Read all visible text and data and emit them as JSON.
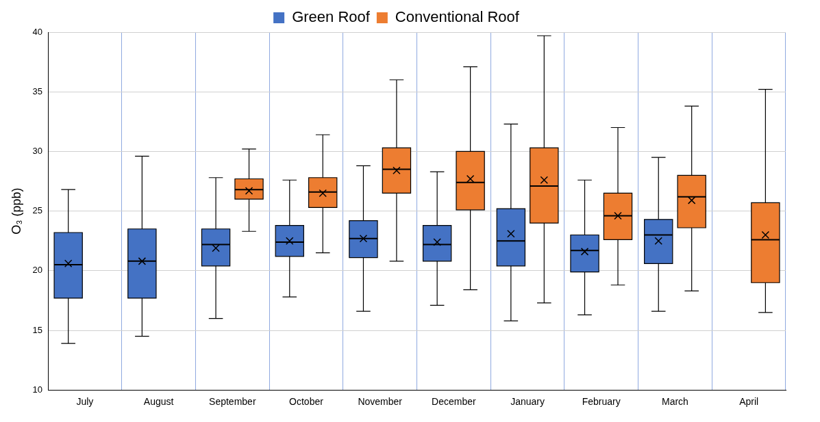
{
  "chart_data": {
    "type": "box",
    "ylabel": "O₃ (ppb)",
    "categories": [
      "July",
      "August",
      "September",
      "October",
      "November",
      "December",
      "January",
      "February",
      "March",
      "April"
    ],
    "ylim": [
      10,
      40
    ],
    "yticks": [
      10,
      15,
      20,
      25,
      30,
      35,
      40
    ],
    "grid": true,
    "legend": "top",
    "series": [
      {
        "name": "Green Roof",
        "color": "#4472c4",
        "boxes": [
          {
            "low": 13.9,
            "q1": 17.7,
            "median": 20.5,
            "q3": 23.2,
            "high": 26.8,
            "mean": 20.6
          },
          {
            "low": 14.5,
            "q1": 17.7,
            "median": 20.8,
            "q3": 23.5,
            "high": 29.6,
            "mean": 20.8
          },
          {
            "low": 16.0,
            "q1": 20.4,
            "median": 22.2,
            "q3": 23.5,
            "high": 27.8,
            "mean": 21.9
          },
          {
            "low": 17.8,
            "q1": 21.2,
            "median": 22.4,
            "q3": 23.8,
            "high": 27.6,
            "mean": 22.5
          },
          {
            "low": 16.6,
            "q1": 21.1,
            "median": 22.7,
            "q3": 24.2,
            "high": 28.8,
            "mean": 22.7
          },
          {
            "low": 17.1,
            "q1": 20.8,
            "median": 22.2,
            "q3": 23.8,
            "high": 28.3,
            "mean": 22.4
          },
          {
            "low": 15.8,
            "q1": 20.4,
            "median": 22.5,
            "q3": 25.2,
            "high": 32.3,
            "mean": 23.1
          },
          {
            "low": 16.3,
            "q1": 19.9,
            "median": 21.7,
            "q3": 23.0,
            "high": 27.6,
            "mean": 21.6
          },
          {
            "low": 16.6,
            "q1": 20.6,
            "median": 23.0,
            "q3": 24.3,
            "high": 29.5,
            "mean": 22.5
          },
          null
        ]
      },
      {
        "name": "Conventional Roof",
        "color": "#ed7d31",
        "boxes": [
          null,
          null,
          {
            "low": 23.3,
            "q1": 26.0,
            "median": 26.8,
            "q3": 27.7,
            "high": 30.2,
            "mean": 26.7
          },
          {
            "low": 21.5,
            "q1": 25.3,
            "median": 26.6,
            "q3": 27.8,
            "high": 31.4,
            "mean": 26.5
          },
          {
            "low": 20.8,
            "q1": 26.5,
            "median": 28.5,
            "q3": 30.3,
            "high": 36.0,
            "mean": 28.4
          },
          {
            "low": 18.4,
            "q1": 25.1,
            "median": 27.4,
            "q3": 30.0,
            "high": 37.1,
            "mean": 27.7
          },
          {
            "low": 17.3,
            "q1": 24.0,
            "median": 27.1,
            "q3": 30.3,
            "high": 39.7,
            "mean": 27.6
          },
          {
            "low": 18.8,
            "q1": 22.6,
            "median": 24.6,
            "q3": 26.5,
            "high": 32.0,
            "mean": 24.6
          },
          {
            "low": 18.3,
            "q1": 23.6,
            "median": 26.2,
            "q3": 28.0,
            "high": 33.8,
            "mean": 25.9
          },
          {
            "low": 16.5,
            "q1": 19.0,
            "median": 22.6,
            "q3": 25.7,
            "high": 35.2,
            "mean": 23.0
          }
        ]
      }
    ]
  }
}
